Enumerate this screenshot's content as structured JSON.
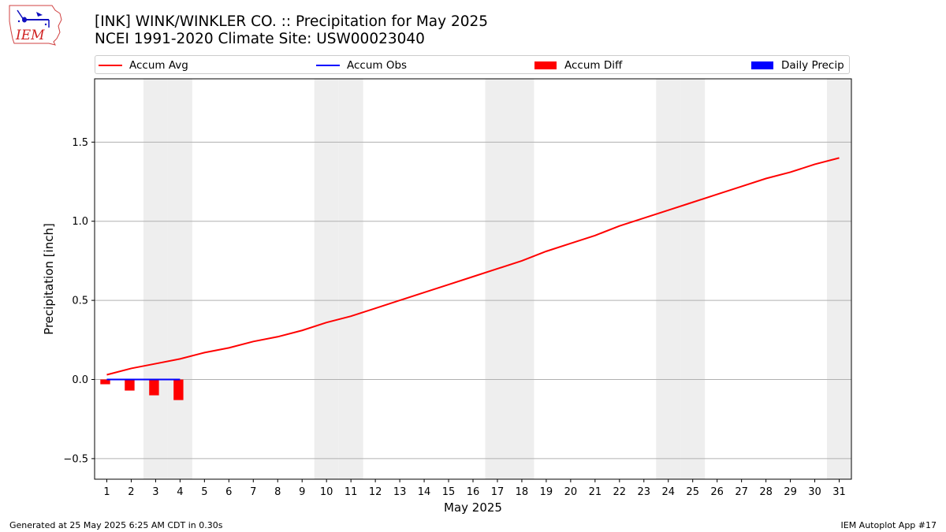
{
  "header": {
    "title_line1": "[INK] WINK/WINKLER CO. :: Precipitation for May 2025",
    "title_line2": "NCEI 1991-2020 Climate Site: USW00023040"
  },
  "logo": {
    "text": "IEM"
  },
  "footer": {
    "generated": "Generated at 25 May 2025 6:25 AM CDT in 0.30s",
    "app": "IEM Autoplot App #17"
  },
  "legend": {
    "items": [
      {
        "label": "Accum Avg",
        "kind": "line",
        "color": "#ff0000"
      },
      {
        "label": "Accum Obs",
        "kind": "line",
        "color": "#0000ff"
      },
      {
        "label": "Accum Diff",
        "kind": "box",
        "color": "#ff0000"
      },
      {
        "label": "Daily Precip",
        "kind": "box",
        "color": "#0000ff"
      }
    ]
  },
  "chart_data": {
    "type": "line",
    "xlabel": "May 2025",
    "ylabel": "Precipitation [inch]",
    "xlim": [
      0.5,
      31.5
    ],
    "ylim": [
      -0.63,
      1.9
    ],
    "yticks": [
      -0.5,
      0.0,
      0.5,
      1.0,
      1.5
    ],
    "ytick_labels": [
      "−0.5",
      "0.0",
      "0.5",
      "1.0",
      "1.5"
    ],
    "x": [
      1,
      2,
      3,
      4,
      5,
      6,
      7,
      8,
      9,
      10,
      11,
      12,
      13,
      14,
      15,
      16,
      17,
      18,
      19,
      20,
      21,
      22,
      23,
      24,
      25,
      26,
      27,
      28,
      29,
      30,
      31
    ],
    "weekend_days": [
      3,
      4,
      10,
      11,
      17,
      18,
      24,
      25,
      31
    ],
    "grid": "y",
    "colors": {
      "avg": "#ff0000",
      "obs": "#0000ff",
      "diff": "#ff0000",
      "weekend": "#eeeeee"
    },
    "series": [
      {
        "name": "Accum Avg",
        "values": [
          0.03,
          0.07,
          0.1,
          0.13,
          0.17,
          0.2,
          0.24,
          0.27,
          0.31,
          0.36,
          0.4,
          0.45,
          0.5,
          0.55,
          0.6,
          0.65,
          0.7,
          0.75,
          0.81,
          0.86,
          0.91,
          0.97,
          1.02,
          1.07,
          1.12,
          1.17,
          1.22,
          1.27,
          1.31,
          1.36,
          1.4
        ]
      },
      {
        "name": "Accum Obs",
        "x": [
          1,
          2,
          3,
          4
        ],
        "values": [
          0.0,
          0.0,
          0.0,
          0.0
        ]
      },
      {
        "name": "Accum Diff",
        "x": [
          1,
          2,
          3,
          4
        ],
        "values": [
          -0.03,
          -0.07,
          -0.1,
          -0.13
        ]
      }
    ]
  }
}
